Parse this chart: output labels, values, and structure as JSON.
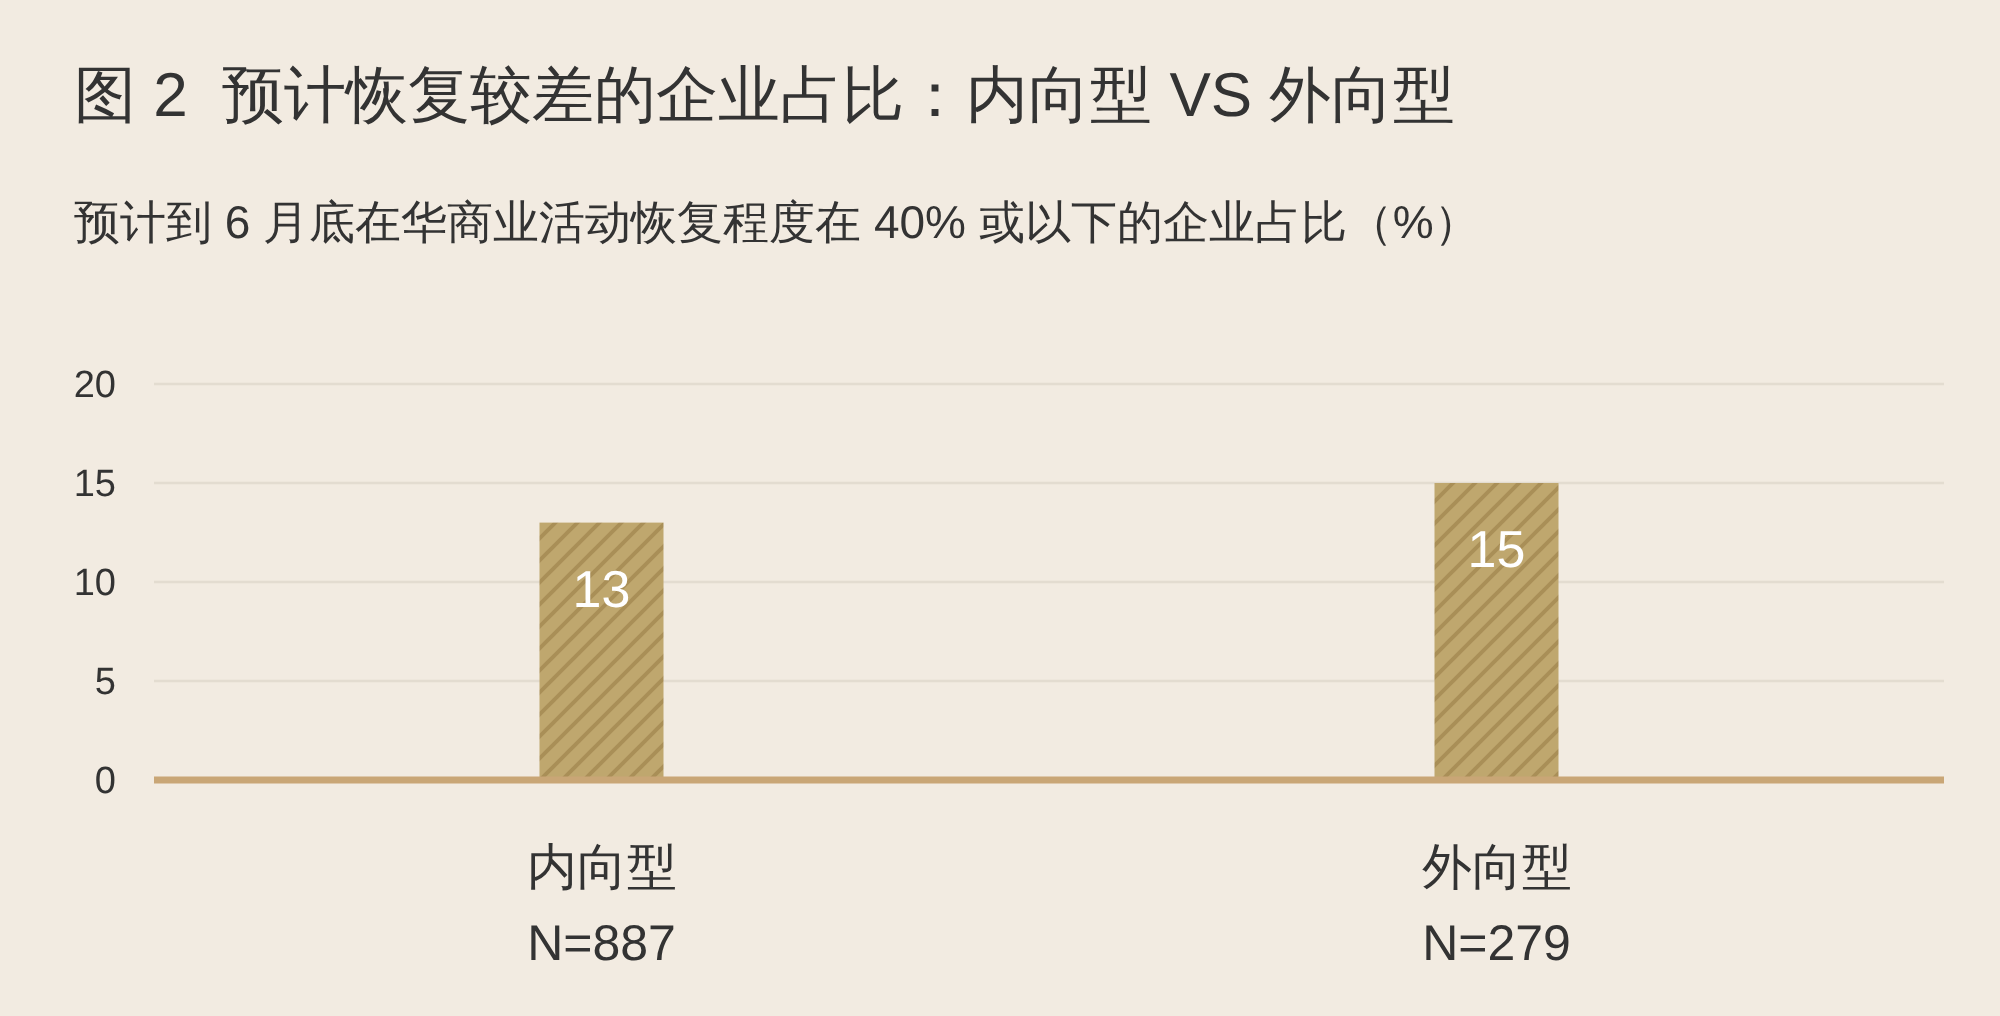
{
  "chart_data": {
    "type": "bar",
    "title": "图 2  预计恢复较差的企业占比：内向型 VS 外向型",
    "subtitle": "预计到 6 月底在华商业活动恢复程度在 40% 或以下的企业占比（%）",
    "categories": [
      "内向型\nN=887",
      "外向型\nN=279"
    ],
    "values": [
      13,
      15
    ],
    "color": "#bfa76e",
    "ylim": [
      0,
      20
    ],
    "yticks": [
      0,
      5,
      10,
      15,
      20
    ],
    "grid": "y",
    "data_labels": true
  }
}
